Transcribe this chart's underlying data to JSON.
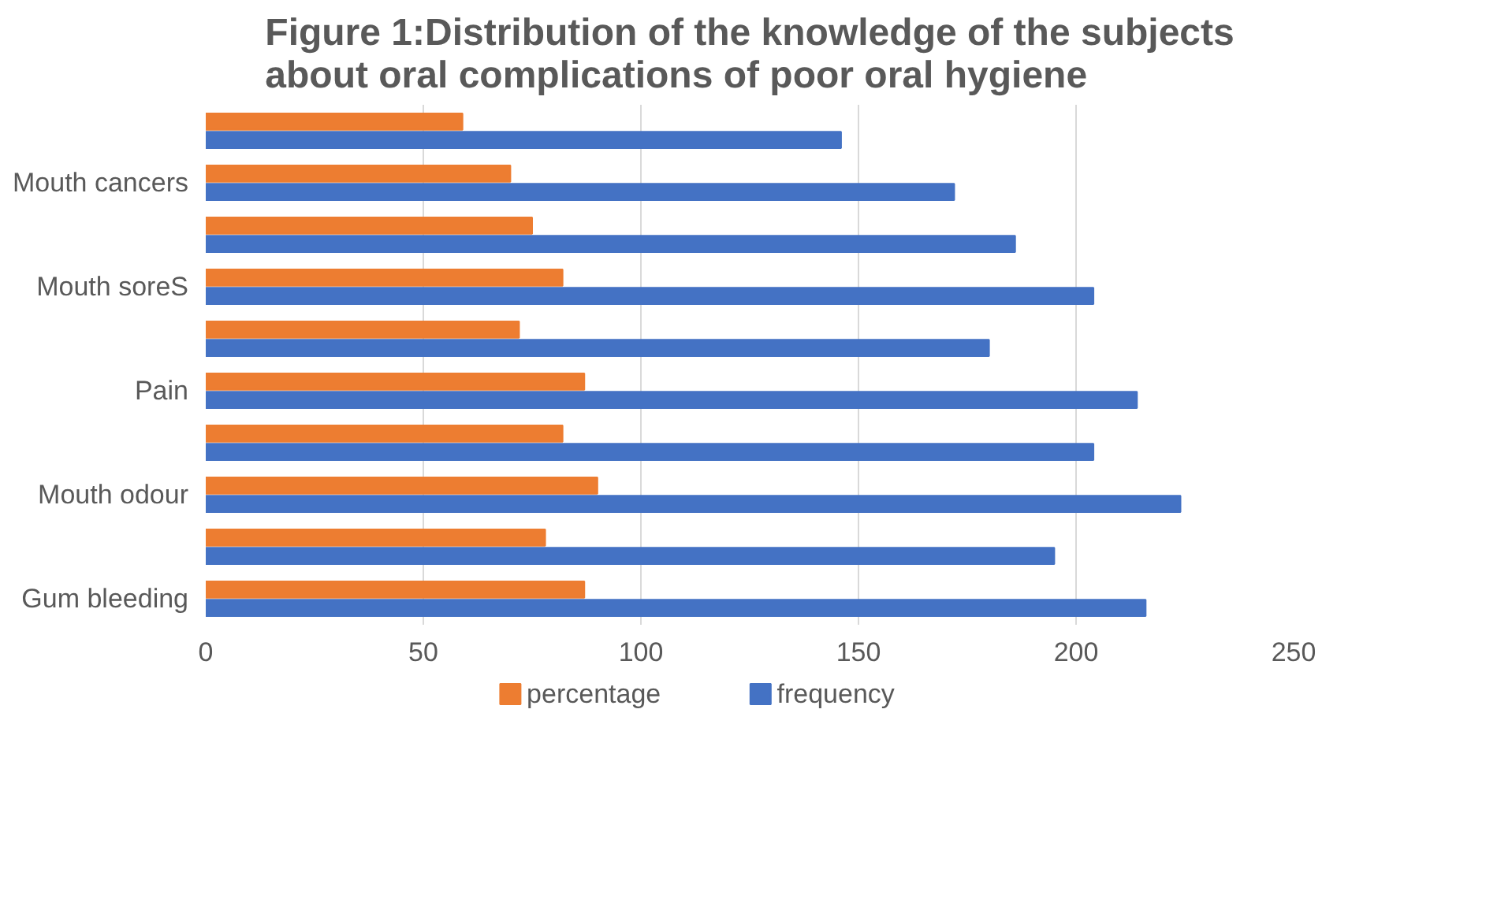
{
  "chart_data": {
    "type": "bar",
    "orientation": "horizontal",
    "title": "Figure 1:Distribution of the knowledge of the subjects\nabout oral complications of poor oral hygiene",
    "categories": [
      null,
      "Mouth cancers",
      null,
      "Mouth soreS",
      null,
      "Pain",
      null,
      "Mouth odour",
      null,
      "Gum bleeding"
    ],
    "series": [
      {
        "name": "percentage",
        "color": "#ed7d31",
        "values": [
          59,
          70,
          75,
          82,
          72,
          87,
          82,
          90,
          78,
          87
        ]
      },
      {
        "name": "frequency",
        "color": "#4472c4",
        "values": [
          146,
          172,
          186,
          204,
          180,
          214,
          204,
          224,
          195,
          216
        ]
      }
    ],
    "xlim": [
      0,
      250
    ],
    "xticks": [
      0,
      50,
      100,
      150,
      200,
      250
    ],
    "grid": "x",
    "legend": "bottom"
  }
}
